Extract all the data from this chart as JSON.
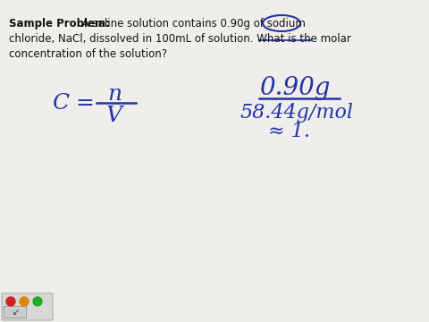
{
  "bg_color": "#f0eeea",
  "text_color": "#111111",
  "blue_color": "#2233aa",
  "bold_label": "Sample Problem:",
  "problem_line1": " A saline solution contains 0.90g of sodium",
  "problem_line2": "chloride, NaCl, dissolved in 100mL of solution. What is the molar",
  "problem_line3": "concentration of the solution?",
  "formula_C": "C",
  "formula_eq": "=",
  "formula_n": "n",
  "formula_V": "V",
  "numerator": "0.90g",
  "denominator": "58.44g/mol",
  "approx_line": "≈ 1.",
  "fontsize_text": 8.5,
  "fontsize_formula_large": 18,
  "fontsize_formula_med": 16,
  "fontsize_approx": 14
}
